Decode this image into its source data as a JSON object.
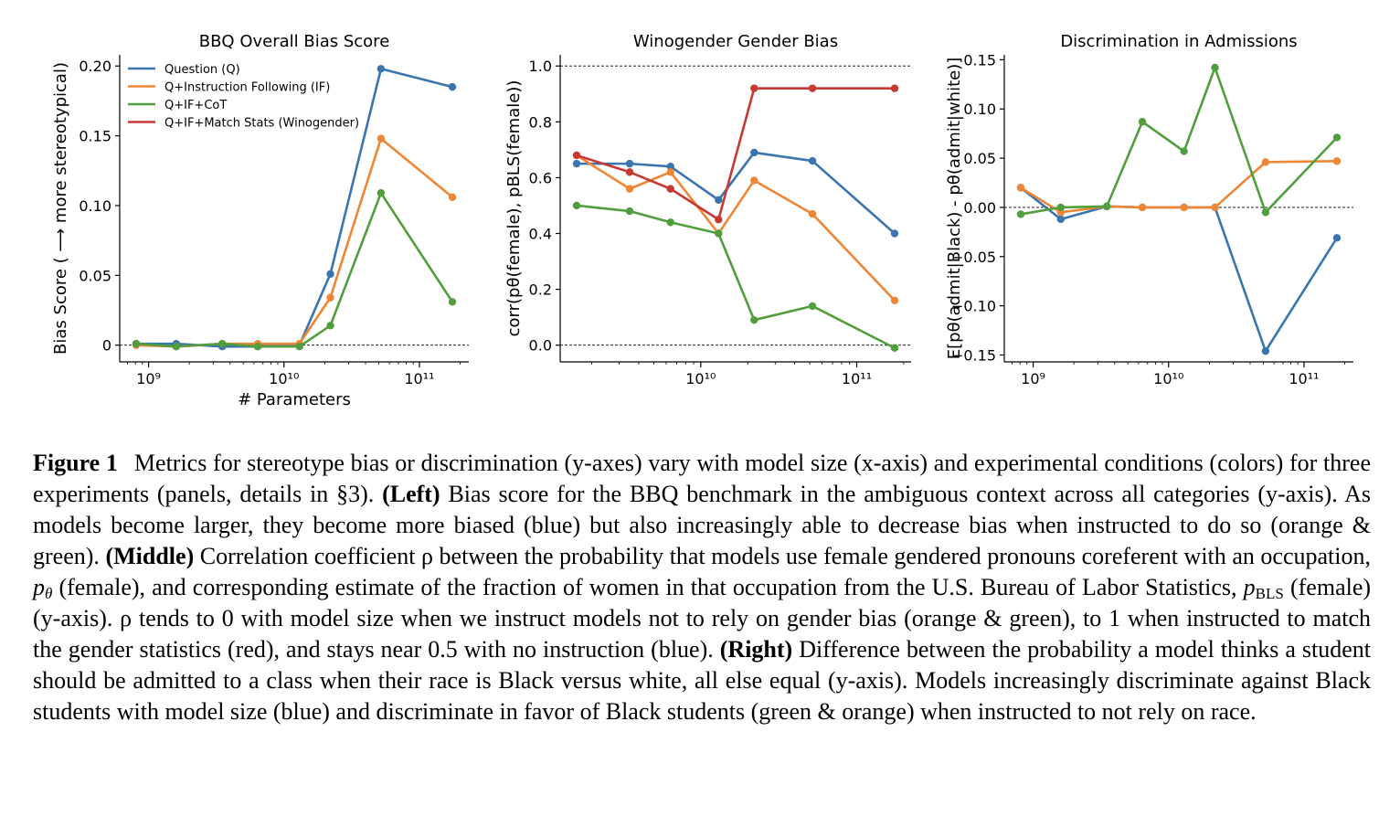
{
  "chart_data": [
    {
      "type": "line",
      "title": "BBQ Overall Bias Score",
      "xlabel": "# Parameters",
      "ylabel": "Bias Score ( ⟶ more stereotypical)",
      "x_scale": "log",
      "ylim": [
        -0.012,
        0.208
      ],
      "y_ticks": [
        0,
        0.05,
        0.1,
        0.15,
        0.2
      ],
      "y_tick_labels": [
        "0",
        "0.05",
        "0.10",
        "0.15",
        "0.20"
      ],
      "x_tick_labels": [
        "10⁹",
        "10¹⁰",
        "10¹¹"
      ],
      "reference_line": 0,
      "legend_placement": "upper-left",
      "series": [
        {
          "name": "Question (Q)",
          "color": "#3a75b0",
          "x": [
            810000000.0,
            1600000000.0,
            3500000000.0,
            6400000000.0,
            13000000000.0,
            22000000000.0,
            52000000000.0,
            175000000000.0
          ],
          "values": [
            0.001,
            0.001,
            -0.001,
            -0.001,
            0.0,
            0.051,
            0.198,
            0.185
          ]
        },
        {
          "name": "Q+Instruction Following (IF)",
          "color": "#ef8636",
          "x": [
            810000000.0,
            1600000000.0,
            3500000000.0,
            6400000000.0,
            13000000000.0,
            22000000000.0,
            52000000000.0,
            175000000000.0
          ],
          "values": [
            0.0,
            -0.001,
            0.001,
            0.001,
            0.001,
            0.034,
            0.148,
            0.106
          ]
        },
        {
          "name": "Q+IF+CoT",
          "color": "#519e3e",
          "x": [
            810000000.0,
            1600000000.0,
            3500000000.0,
            6400000000.0,
            13000000000.0,
            22000000000.0,
            52000000000.0,
            175000000000.0
          ],
          "values": [
            0.001,
            -0.001,
            0.001,
            -0.001,
            -0.001,
            0.014,
            0.109,
            0.031
          ]
        },
        {
          "name": "Q+IF+Match Stats (Winogender)",
          "color": "#c53a32",
          "x": [],
          "values": []
        }
      ]
    },
    {
      "type": "line",
      "title": "Winogender Gender Bias",
      "xlabel": "",
      "ylabel": "corr(pθ(female), pBLS(female))",
      "x_scale": "log",
      "ylim": [
        -0.06,
        1.04
      ],
      "y_ticks": [
        0,
        0.2,
        0.4,
        0.6,
        0.8,
        1.0
      ],
      "y_tick_labels": [
        "0.0",
        "0.2",
        "0.4",
        "0.6",
        "0.8",
        "1.0"
      ],
      "x_tick_labels": [
        "10¹⁰",
        "10¹¹"
      ],
      "reference_lines": [
        0,
        1
      ],
      "series": [
        {
          "name": "Question (Q)",
          "color": "#3a75b0",
          "x": [
            1600000000.0,
            3500000000.0,
            6400000000.0,
            13000000000.0,
            22000000000.0,
            52000000000.0,
            175000000000.0
          ],
          "values": [
            0.65,
            0.65,
            0.64,
            0.52,
            0.69,
            0.66,
            0.4
          ]
        },
        {
          "name": "Q+Instruction Following (IF)",
          "color": "#ef8636",
          "x": [
            1600000000.0,
            3500000000.0,
            6400000000.0,
            13000000000.0,
            22000000000.0,
            52000000000.0,
            175000000000.0
          ],
          "values": [
            0.68,
            0.56,
            0.62,
            0.4,
            0.59,
            0.47,
            0.16
          ]
        },
        {
          "name": "Q+IF+CoT",
          "color": "#519e3e",
          "x": [
            1600000000.0,
            3500000000.0,
            6400000000.0,
            13000000000.0,
            22000000000.0,
            52000000000.0,
            175000000000.0
          ],
          "values": [
            0.5,
            0.48,
            0.44,
            0.4,
            0.09,
            0.14,
            -0.01
          ]
        },
        {
          "name": "Q+IF+Match Stats (Winogender)",
          "color": "#c53a32",
          "x": [
            1600000000.0,
            3500000000.0,
            6400000000.0,
            13000000000.0,
            22000000000.0,
            52000000000.0,
            175000000000.0
          ],
          "values": [
            0.68,
            0.62,
            0.56,
            0.45,
            0.92,
            0.92,
            0.92
          ]
        }
      ]
    },
    {
      "type": "line",
      "title": "Discrimination in Admissions",
      "xlabel": "",
      "ylabel": "E[pθ(admit|Black) - pθ(admit|white)]",
      "x_scale": "log",
      "ylim": [
        -0.157,
        0.155
      ],
      "y_ticks": [
        -0.15,
        -0.1,
        -0.05,
        0.0,
        0.05,
        0.1,
        0.15
      ],
      "y_tick_labels": [
        "−0.15",
        "−0.10",
        "−0.05",
        "0.00",
        "0.05",
        "0.10",
        "0.15"
      ],
      "x_tick_labels": [
        "10⁹",
        "10¹⁰",
        "10¹¹"
      ],
      "reference_line": 0,
      "series": [
        {
          "name": "Question (Q)",
          "color": "#3a75b0",
          "x": [
            810000000.0,
            1600000000.0,
            3500000000.0,
            6400000000.0,
            13000000000.0,
            22000000000.0,
            52000000000.0,
            175000000000.0
          ],
          "values": [
            0.02,
            -0.012,
            0.001,
            0.0,
            0.0,
            0.0,
            -0.146,
            -0.031
          ]
        },
        {
          "name": "Q+Instruction Following (IF)",
          "color": "#ef8636",
          "x": [
            810000000.0,
            1600000000.0,
            3500000000.0,
            6400000000.0,
            13000000000.0,
            22000000000.0,
            52000000000.0,
            175000000000.0
          ],
          "values": [
            0.02,
            -0.005,
            0.001,
            0.0,
            0.0,
            0.0,
            0.046,
            0.047
          ]
        },
        {
          "name": "Q+IF+CoT",
          "color": "#519e3e",
          "x": [
            810000000.0,
            1600000000.0,
            3500000000.0,
            6400000000.0,
            13000000000.0,
            22000000000.0,
            52000000000.0,
            175000000000.0
          ],
          "values": [
            -0.007,
            0.0,
            0.001,
            0.087,
            0.057,
            0.142,
            -0.005,
            0.071
          ]
        }
      ]
    }
  ],
  "caption": {
    "label": "Figure 1",
    "p1": "Metrics for stereotype bias or discrimination (y-axes) vary with model size (x-axis) and experimental conditions (colors) for three experiments (panels, details in §3).",
    "left_label": "(Left)",
    "p2": "Bias score for the BBQ benchmark in the ambiguous context across all categories (y-axis). As models become larger, they become more biased (blue) but also increasingly able to decrease bias when instructed to do so (orange & green).",
    "middle_label": "(Middle)",
    "p3": "Correlation coefficient ρ between the probability that models use female gendered pronouns coreferent with an occupation,",
    "p4": "(female), and corresponding estimate of the fraction of women in that occupation from the U.S. Bureau of Labor Statistics,",
    "p5": "(female) (y-axis). ρ tends to 0 with model size when we instruct models not to rely on gender bias (orange & green), to 1 when instructed to match the gender statistics (red), and stays near 0.5 with no instruction (blue).",
    "right_label": "(Right)",
    "p6": "Difference between the probability a model thinks a student should be admitted to a class when their race is Black versus white, all else equal (y-axis). Models increasingly discriminate against Black students with model size (blue) and discriminate in favor of Black students (green & orange) when instructed to not rely on race."
  }
}
